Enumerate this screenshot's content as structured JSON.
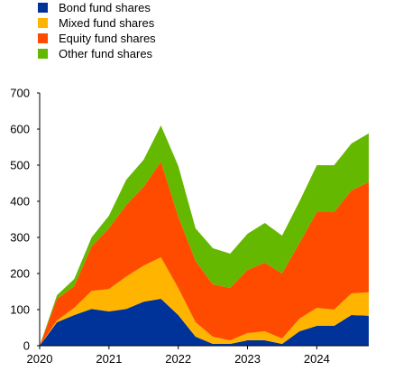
{
  "chart_data": {
    "type": "area",
    "stacked": true,
    "title": "",
    "xlabel": "",
    "ylabel": "",
    "ylim": [
      0,
      700
    ],
    "y_ticks": [
      "0",
      "100",
      "200",
      "300",
      "400",
      "500",
      "600",
      "700"
    ],
    "x_ticks": [
      "2020",
      "2021",
      "2022",
      "2023",
      "2024"
    ],
    "grid": false,
    "legend_position": "top-left",
    "x": [
      "2020-Q1",
      "2020-Q2",
      "2020-Q3",
      "2020-Q4",
      "2021-Q1",
      "2021-Q2",
      "2021-Q3",
      "2021-Q4",
      "2022-Q1",
      "2022-Q2",
      "2022-Q3",
      "2022-Q4",
      "2023-Q1",
      "2023-Q2",
      "2023-Q3",
      "2023-Q4",
      "2024-Q1",
      "2024-Q2",
      "2024-Q3",
      "2024-Q4"
    ],
    "series": [
      {
        "name": "Bond fund shares",
        "color": "#003399",
        "values": [
          0,
          65,
          85,
          102,
          95,
          102,
          122,
          130,
          85,
          25,
          5,
          5,
          15,
          15,
          5,
          40,
          55,
          55,
          85,
          83
        ]
      },
      {
        "name": "Mixed fund shares",
        "color": "#ffb400",
        "values": [
          0,
          5,
          20,
          50,
          62,
          90,
          100,
          115,
          75,
          40,
          20,
          10,
          20,
          25,
          15,
          35,
          50,
          45,
          60,
          65
        ]
      },
      {
        "name": "Equity fund shares",
        "color": "#ff4b00",
        "values": [
          0,
          60,
          60,
          123,
          168,
          198,
          218,
          265,
          198,
          170,
          145,
          145,
          175,
          190,
          180,
          210,
          265,
          270,
          285,
          305
        ]
      },
      {
        "name": "Other fund shares",
        "color": "#65b800",
        "values": [
          0,
          10,
          20,
          25,
          35,
          70,
          75,
          100,
          140,
          90,
          100,
          95,
          100,
          110,
          105,
          115,
          130,
          130,
          130,
          135
        ]
      }
    ]
  }
}
